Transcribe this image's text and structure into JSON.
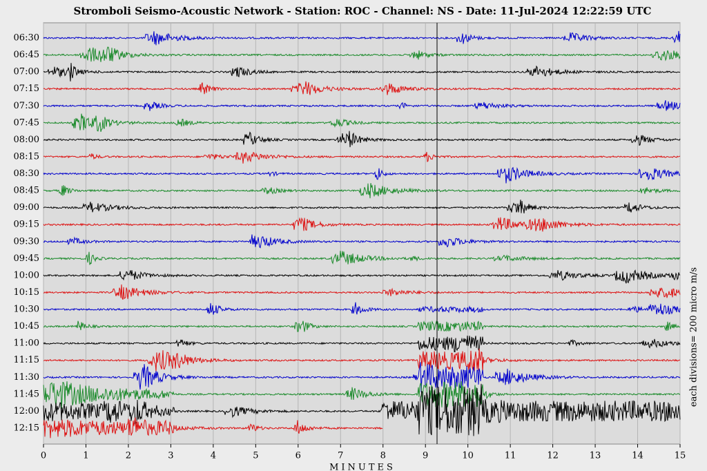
{
  "chart_data": {
    "type": "helicorder",
    "title": "Stromboli Seismo-Acoustic Network - Station: ROC - Channel: NS - Date: 11-Jul-2024 12:22:59 UTC",
    "xlabel": "MINUTES",
    "ylabel_right": "each divisions= 200 micro m/s",
    "xlim": [
      0,
      15
    ],
    "xticks": [
      0,
      1,
      2,
      3,
      4,
      5,
      6,
      7,
      8,
      9,
      10,
      11,
      12,
      13,
      14,
      15
    ],
    "grid": true,
    "rows": [
      {
        "label": "06:30",
        "color": "#0000cc"
      },
      {
        "label": "06:45",
        "color": "#1a8a2a"
      },
      {
        "label": "07:00",
        "color": "#000000"
      },
      {
        "label": "07:15",
        "color": "#dd1111"
      },
      {
        "label": "07:30",
        "color": "#0000cc"
      },
      {
        "label": "07:45",
        "color": "#1a8a2a"
      },
      {
        "label": "08:00",
        "color": "#000000"
      },
      {
        "label": "08:15",
        "color": "#dd1111"
      },
      {
        "label": "08:30",
        "color": "#0000cc"
      },
      {
        "label": "08:45",
        "color": "#1a8a2a"
      },
      {
        "label": "09:00",
        "color": "#000000"
      },
      {
        "label": "09:15",
        "color": "#dd1111"
      },
      {
        "label": "09:30",
        "color": "#0000cc"
      },
      {
        "label": "09:45",
        "color": "#1a8a2a"
      },
      {
        "label": "10:00",
        "color": "#000000"
      },
      {
        "label": "10:15",
        "color": "#dd1111"
      },
      {
        "label": "10:30",
        "color": "#0000cc"
      },
      {
        "label": "10:45",
        "color": "#1a8a2a"
      },
      {
        "label": "11:00",
        "color": "#000000"
      },
      {
        "label": "11:15",
        "color": "#dd1111"
      },
      {
        "label": "11:30",
        "color": "#0000cc"
      },
      {
        "label": "11:45",
        "color": "#1a8a2a"
      },
      {
        "label": "12:00",
        "color": "#000000"
      },
      {
        "label": "12:15",
        "color": "#dd1111"
      }
    ]
  }
}
